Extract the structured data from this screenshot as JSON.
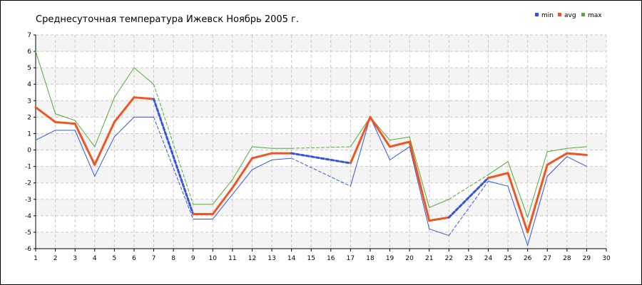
{
  "chart_data": {
    "type": "line",
    "title": "Среднесуточная температура Ижевск  Ноябрь 2005 г.",
    "xlabel": "",
    "ylabel": "",
    "xlim": [
      1,
      30
    ],
    "ylim": [
      -6,
      7
    ],
    "x_ticks": [
      1,
      2,
      3,
      4,
      5,
      6,
      7,
      8,
      9,
      10,
      11,
      12,
      13,
      14,
      15,
      16,
      17,
      18,
      19,
      20,
      21,
      22,
      23,
      24,
      25,
      26,
      27,
      28,
      29,
      30
    ],
    "y_ticks": [
      -6,
      -5,
      -4,
      -3,
      -2,
      -1,
      0,
      1,
      2,
      3,
      4,
      5,
      6,
      7
    ],
    "grid": true,
    "legend_position": "top-right",
    "x": [
      1,
      2,
      3,
      4,
      5,
      6,
      7,
      8,
      9,
      10,
      11,
      12,
      13,
      14,
      15,
      16,
      17,
      18,
      19,
      20,
      21,
      22,
      23,
      24,
      25,
      26,
      27,
      28,
      29
    ],
    "series": [
      {
        "name": "min",
        "color": "#3355dd",
        "values": [
          0.6,
          1.2,
          1.2,
          -1.6,
          0.8,
          2.0,
          2.0,
          null,
          -4.2,
          -4.2,
          -2.7,
          -1.2,
          -0.6,
          -0.5,
          null,
          null,
          -2.2,
          2.0,
          -0.6,
          0.2,
          -4.8,
          -5.2,
          null,
          -1.9,
          -2.2,
          -5.8,
          -1.6,
          -0.4,
          -1.0
        ]
      },
      {
        "name": "avg",
        "color": "#ee5522",
        "values": [
          2.6,
          1.7,
          1.6,
          -0.9,
          1.7,
          3.2,
          3.1,
          null,
          -3.9,
          -3.9,
          -2.3,
          -0.5,
          -0.2,
          -0.2,
          null,
          null,
          -0.8,
          2.0,
          0.2,
          0.5,
          -4.3,
          -4.1,
          null,
          -1.7,
          -1.4,
          -5.0,
          -0.9,
          -0.2,
          -0.3
        ]
      },
      {
        "name": "max",
        "color": "#55aa33",
        "values": [
          6.0,
          2.2,
          1.8,
          0.2,
          3.2,
          5.0,
          4.0,
          null,
          -3.3,
          -3.3,
          -1.8,
          0.2,
          0.1,
          0.1,
          null,
          null,
          0.2,
          2.0,
          0.6,
          0.8,
          -3.5,
          -3.0,
          null,
          -1.5,
          -0.7,
          -4.1,
          -0.1,
          0.1,
          0.2
        ]
      }
    ]
  }
}
